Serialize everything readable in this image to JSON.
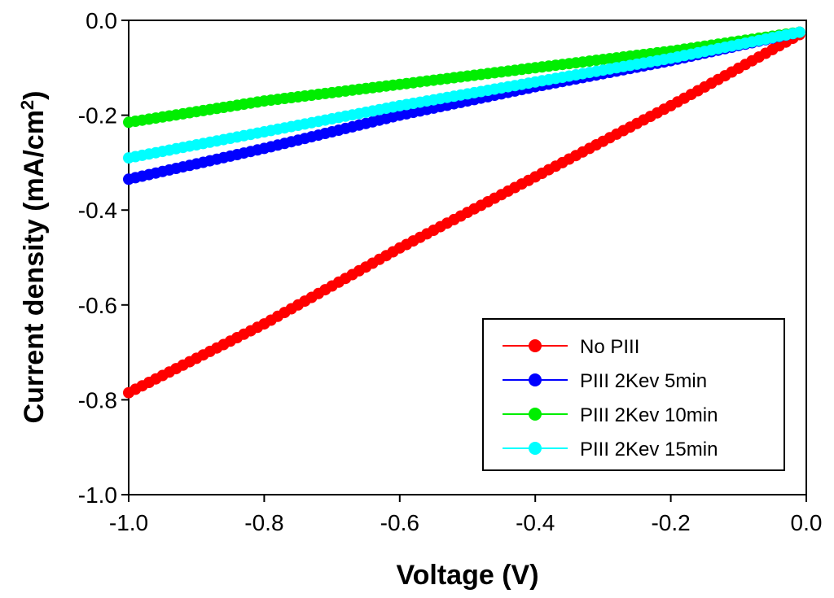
{
  "chart_data": {
    "type": "line",
    "title": "",
    "xlabel": "Voltage (V)",
    "ylabel_main": "Current density (mA/cm",
    "ylabel_sup": "2",
    "ylabel_close": ")",
    "xlim": [
      -1.0,
      0.0
    ],
    "ylim": [
      -1.0,
      0.0
    ],
    "x_ticks": [
      -1.0,
      -0.8,
      -0.6,
      -0.4,
      -0.2,
      0.0
    ],
    "x_tick_labels": [
      "-1.0",
      "-0.8",
      "-0.6",
      "-0.4",
      "-0.2",
      "0.0"
    ],
    "y_ticks": [
      0.0,
      -0.2,
      -0.4,
      -0.6,
      -0.8,
      -1.0
    ],
    "y_tick_labels": [
      "0.0",
      "-0.2",
      "-0.4",
      "-0.6",
      "-0.8",
      "-1.0"
    ],
    "grid": false,
    "legend_position": "bottom-right",
    "x_range": {
      "start": -1.0,
      "end": -0.01,
      "points": 100
    },
    "series": [
      {
        "name": "No PIII",
        "color": "#ff0000",
        "anchors": [
          [
            -1.0,
            -0.785
          ],
          [
            -0.8,
            -0.64
          ],
          [
            -0.6,
            -0.48
          ],
          [
            -0.4,
            -0.33
          ],
          [
            -0.2,
            -0.18
          ],
          [
            -0.01,
            -0.03
          ]
        ]
      },
      {
        "name": "PIII 2Kev 5min",
        "color": "#0000ff",
        "anchors": [
          [
            -1.0,
            -0.335
          ],
          [
            -0.8,
            -0.27
          ],
          [
            -0.6,
            -0.2
          ],
          [
            -0.4,
            -0.14
          ],
          [
            -0.2,
            -0.085
          ],
          [
            -0.01,
            -0.025
          ]
        ]
      },
      {
        "name": "PIII 2Kev 10min",
        "color": "#00ee00",
        "anchors": [
          [
            -1.0,
            -0.215
          ],
          [
            -0.8,
            -0.17
          ],
          [
            -0.6,
            -0.135
          ],
          [
            -0.4,
            -0.1
          ],
          [
            -0.2,
            -0.065
          ],
          [
            -0.01,
            -0.025
          ]
        ]
      },
      {
        "name": "PIII 2Kev 15min",
        "color": "#00ffff",
        "anchors": [
          [
            -1.0,
            -0.29
          ],
          [
            -0.8,
            -0.235
          ],
          [
            -0.6,
            -0.18
          ],
          [
            -0.4,
            -0.13
          ],
          [
            -0.2,
            -0.08
          ],
          [
            -0.01,
            -0.025
          ]
        ]
      }
    ]
  }
}
